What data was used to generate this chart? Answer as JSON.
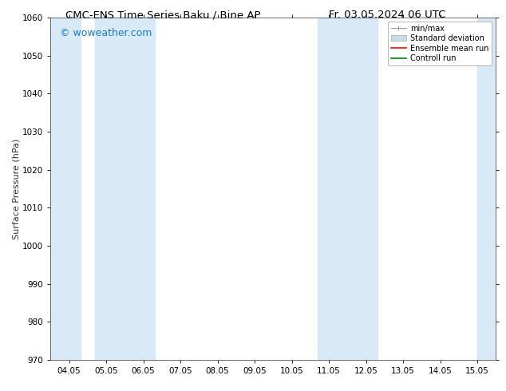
{
  "title_left": "CMC-ENS Time Series Baku / Bine AP",
  "title_right": "Fr. 03.05.2024 06 UTC",
  "ylabel": "Surface Pressure (hPa)",
  "ylim": [
    970,
    1060
  ],
  "yticks": [
    970,
    980,
    990,
    1000,
    1010,
    1020,
    1030,
    1040,
    1050,
    1060
  ],
  "xtick_labels": [
    "04.05",
    "05.05",
    "06.05",
    "07.05",
    "08.05",
    "09.05",
    "10.05",
    "11.05",
    "12.05",
    "13.05",
    "14.05",
    "15.05"
  ],
  "xtick_positions": [
    0,
    1,
    2,
    3,
    4,
    5,
    6,
    7,
    8,
    9,
    10,
    11
  ],
  "xlim": [
    -0.5,
    11.5
  ],
  "shaded_bands": [
    {
      "x_start": -0.5,
      "x_end": 0.3
    },
    {
      "x_start": 0.7,
      "x_end": 2.3
    },
    {
      "x_start": 6.7,
      "x_end": 8.3
    },
    {
      "x_start": 11.0,
      "x_end": 11.5
    }
  ],
  "band_color": "#d8eaf7",
  "band_alpha": 1.0,
  "watermark": "© woweather.com",
  "watermark_color": "#1a7acc",
  "watermark_fontsize": 9,
  "legend_items": [
    {
      "label": "min/max",
      "color": "#aaaaaa",
      "lw": 1,
      "type": "errorbar"
    },
    {
      "label": "Standard deviation",
      "color": "#bbccdd",
      "lw": 6,
      "type": "fill"
    },
    {
      "label": "Ensemble mean run",
      "color": "red",
      "lw": 1.2,
      "type": "line"
    },
    {
      "label": "Controll run",
      "color": "green",
      "lw": 1.2,
      "type": "line"
    }
  ],
  "bg_color": "#ffffff",
  "plot_bg_color": "#ffffff",
  "title_fontsize": 9.5,
  "axis_fontsize": 8,
  "tick_fontsize": 7.5,
  "legend_fontsize": 7
}
